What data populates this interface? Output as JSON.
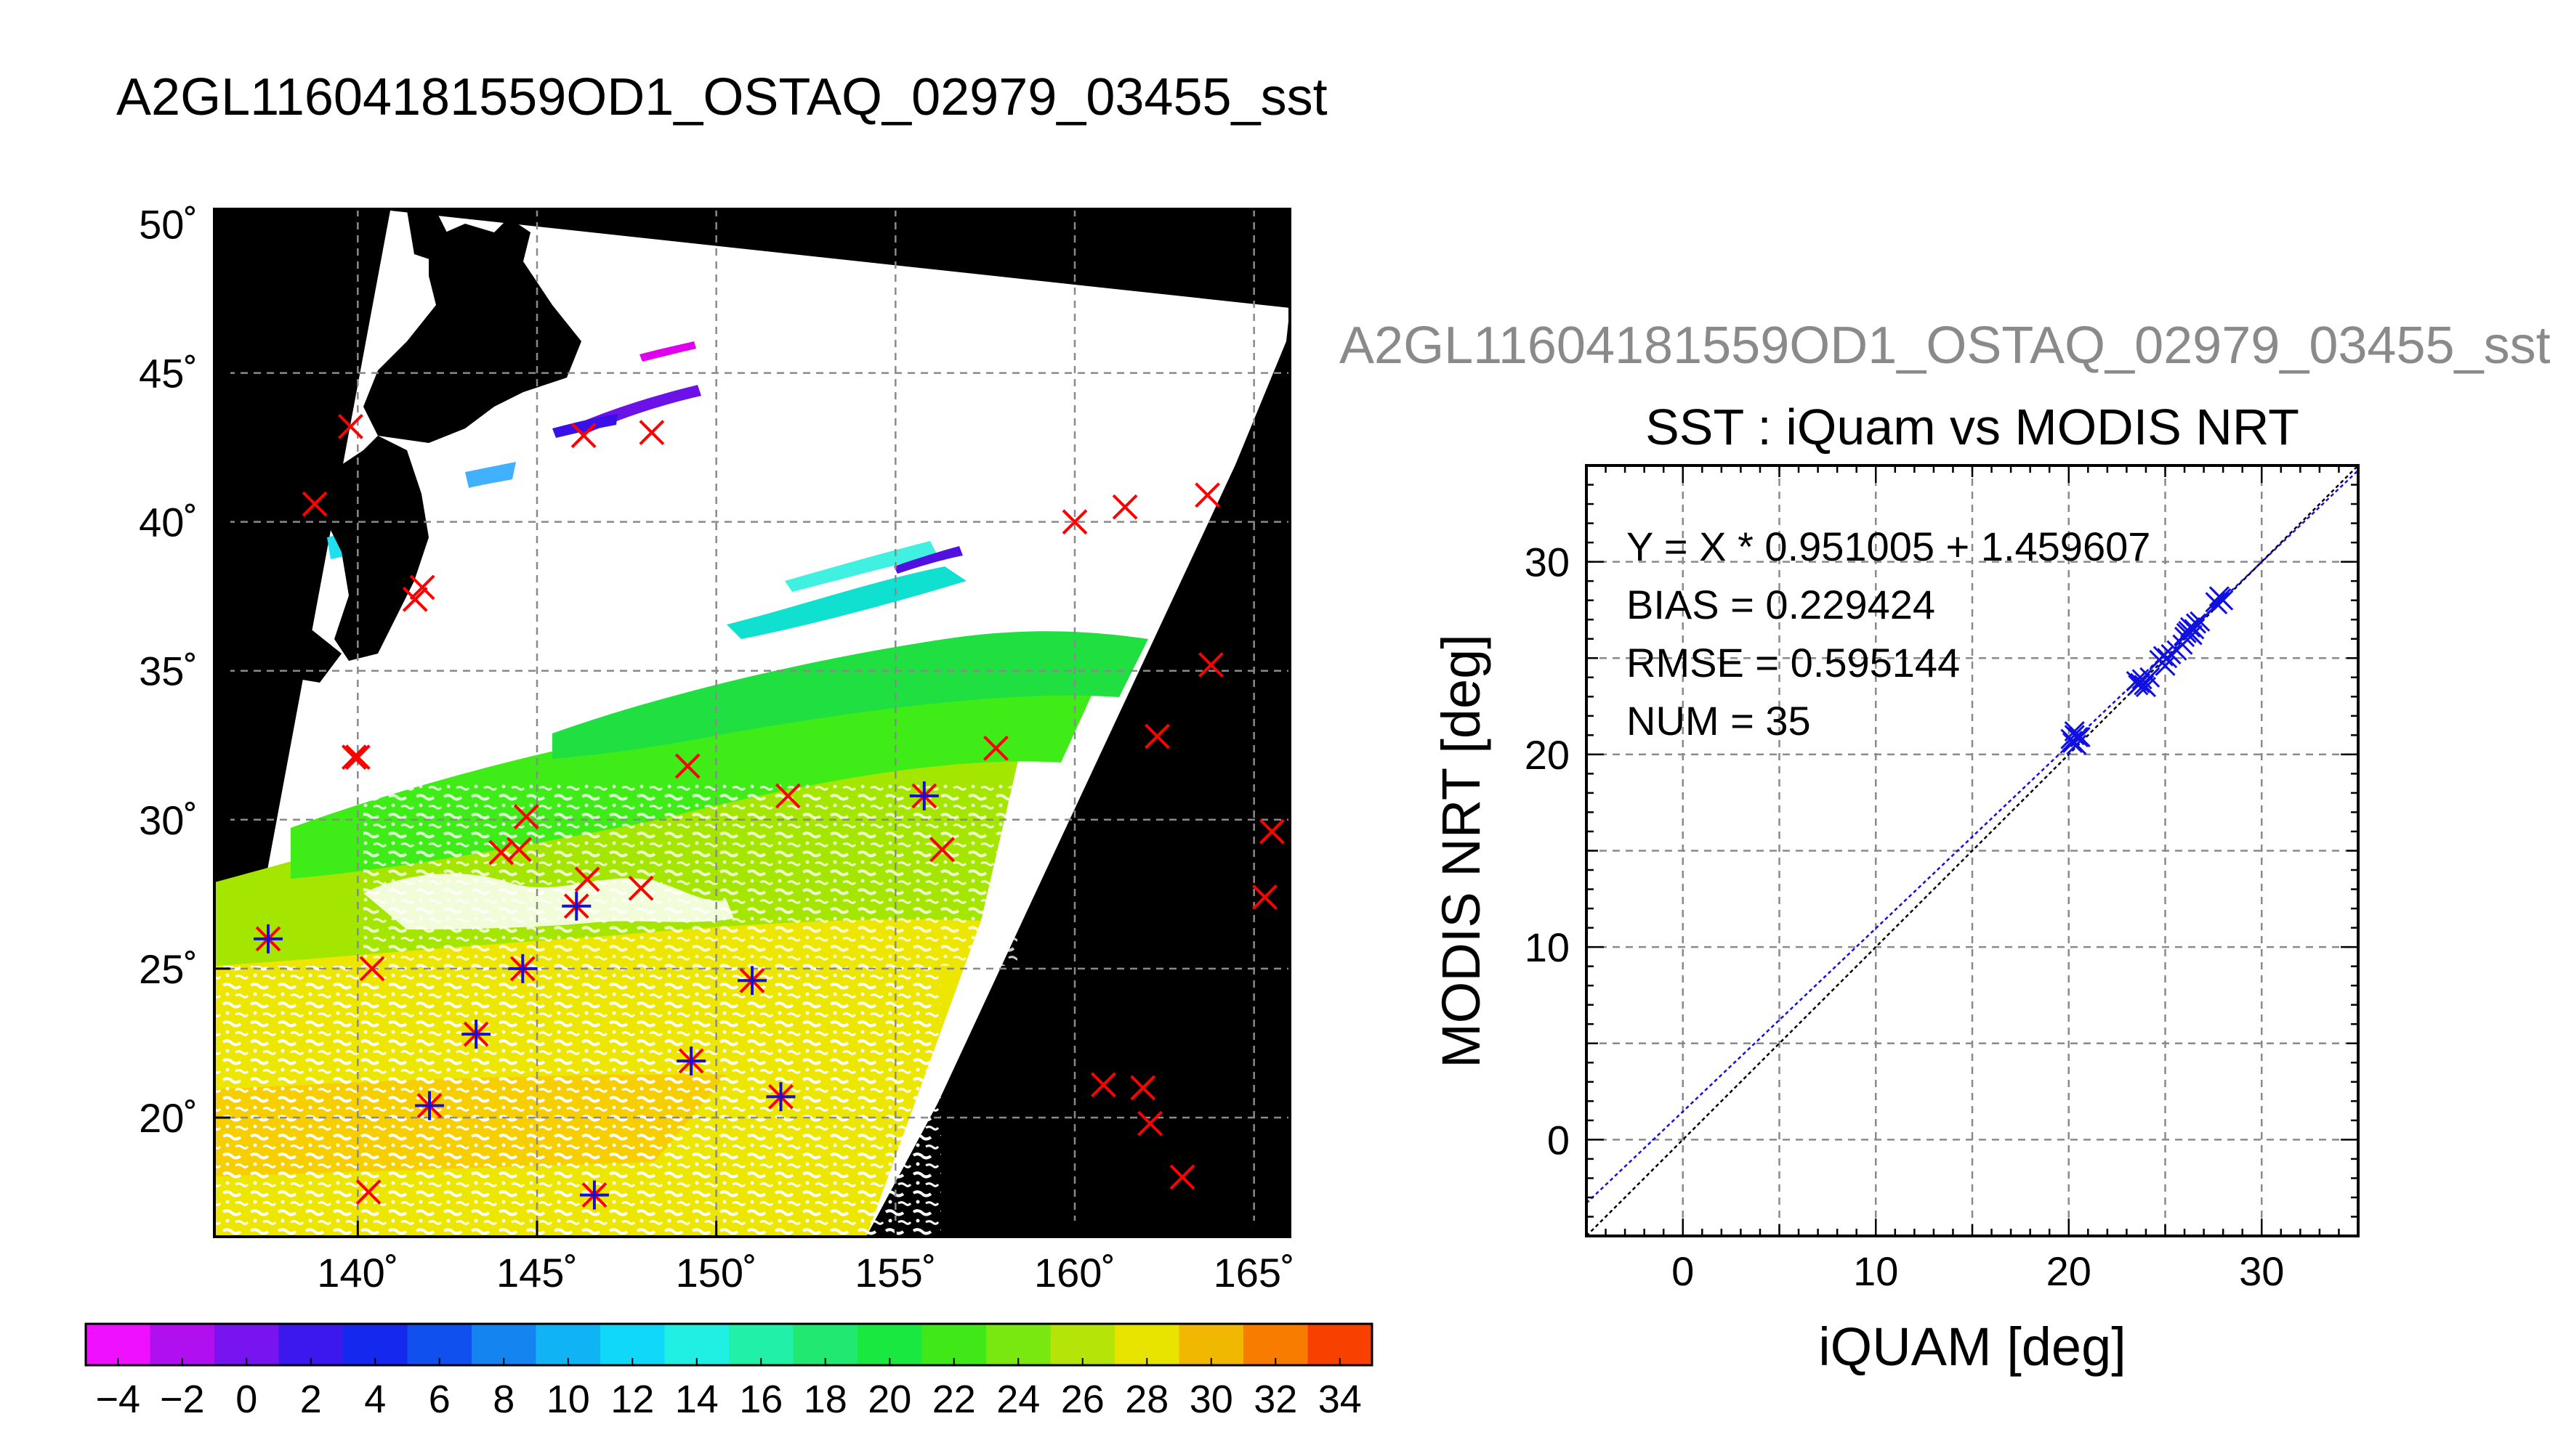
{
  "map": {
    "title": "A2GL11604181559OD1_OSTAQ_02979_03455_sst",
    "lon_ticks": [
      140,
      145,
      150,
      155,
      160,
      165
    ],
    "lat_ticks": [
      20,
      25,
      30,
      35,
      40,
      45,
      50
    ],
    "lon_labels": [
      "140˚",
      "145˚",
      "150˚",
      "155˚",
      "160˚",
      "165˚"
    ],
    "lat_labels": [
      "20˚",
      "25˚",
      "30˚",
      "35˚",
      "40˚",
      "45˚",
      "50˚"
    ],
    "lon_range": [
      136,
      166
    ],
    "lat_range": [
      16,
      50.5
    ],
    "colors": {
      "land_nodata": "#000000",
      "cloud": "#ffffff",
      "match_only": "#ff0000",
      "match_used": "#1a10d0"
    },
    "matchups_red": [
      [
        138.8,
        40.6
      ],
      [
        139.8,
        43.2
      ],
      [
        141.8,
        37.8
      ],
      [
        141.6,
        37.4
      ],
      [
        139.9,
        32.1
      ],
      [
        140.0,
        32.1
      ],
      [
        146.3,
        42.9
      ],
      [
        148.2,
        43.0
      ],
      [
        149.2,
        31.8
      ],
      [
        152.0,
        30.8
      ],
      [
        144.7,
        30.1
      ],
      [
        144.0,
        28.9
      ],
      [
        144.5,
        29.0
      ],
      [
        146.4,
        28.0
      ],
      [
        147.9,
        27.7
      ],
      [
        140.4,
        25.0
      ],
      [
        140.3,
        17.5
      ],
      [
        156.3,
        29.0
      ],
      [
        157.8,
        32.4
      ],
      [
        160.0,
        40.0
      ],
      [
        161.4,
        40.5
      ],
      [
        163.7,
        40.9
      ],
      [
        163.8,
        35.2
      ],
      [
        162.3,
        32.8
      ],
      [
        165.5,
        29.6
      ],
      [
        165.3,
        27.4
      ],
      [
        160.8,
        21.1
      ],
      [
        161.9,
        21.0
      ],
      [
        162.1,
        19.8
      ],
      [
        163.0,
        18.0
      ]
    ],
    "matchups_blue": [
      [
        137.5,
        26.0
      ],
      [
        144.6,
        25.0
      ],
      [
        146.1,
        27.1
      ],
      [
        143.3,
        22.8
      ],
      [
        142.0,
        20.4
      ],
      [
        146.6,
        17.4
      ],
      [
        149.3,
        21.9
      ],
      [
        151.0,
        24.6
      ],
      [
        151.8,
        20.7
      ],
      [
        155.8,
        30.8
      ]
    ]
  },
  "colorbar": {
    "tick_labels": [
      "−4",
      "−2",
      "0",
      "2",
      "4",
      "6",
      "8",
      "10",
      "12",
      "14",
      "16",
      "18",
      "20",
      "22",
      "24",
      "26",
      "28",
      "30",
      "32",
      "34"
    ],
    "min": -5,
    "max": 35,
    "step": 2
  },
  "chart_data": {
    "type": "scatter",
    "header": "A2GL11604181559OD1_OSTAQ_02979_03455_sst",
    "title": "SST : iQuam vs MODIS NRT",
    "xlabel": "iQUAM [deg]",
    "ylabel": "MODIS NRT [deg]",
    "xlim": [
      -5,
      35
    ],
    "ylim": [
      -5,
      35
    ],
    "x_ticks": [
      0,
      10,
      20,
      30
    ],
    "y_ticks": [
      0,
      10,
      20,
      30
    ],
    "grid": true,
    "annotations": [
      "Y = X * 0.951005 + 1.459607",
      "BIAS = 0.229424",
      "RMSE = 0.595144",
      "NUM = 35"
    ],
    "fit": {
      "slope": 0.951005,
      "intercept": 1.459607
    },
    "points": {
      "x": [
        20.2,
        20.3,
        20.5,
        20.2,
        20.4,
        23.6,
        23.8,
        23.5,
        24.0,
        24.7,
        25.0,
        24.9,
        25.3,
        25.9,
        26.1,
        26.3,
        26.5,
        26.0,
        26.8,
        27.7,
        28.0,
        27.8,
        20.1,
        23.7,
        24.2,
        25.6,
        26.2,
        26.6,
        27.9,
        20.6,
        23.9,
        25.1,
        26.4,
        27.6,
        20.3
      ],
      "y": [
        20.6,
        21.2,
        20.9,
        20.7,
        20.5,
        23.6,
        23.9,
        23.8,
        23.5,
        24.9,
        24.6,
        25.1,
        25.2,
        25.7,
        26.3,
        26.6,
        26.5,
        26.1,
        26.9,
        27.8,
        28.0,
        28.2,
        20.8,
        23.7,
        24.0,
        25.4,
        26.4,
        26.8,
        28.1,
        20.9,
        23.6,
        25.0,
        26.2,
        27.9,
        21.0
      ]
    }
  }
}
